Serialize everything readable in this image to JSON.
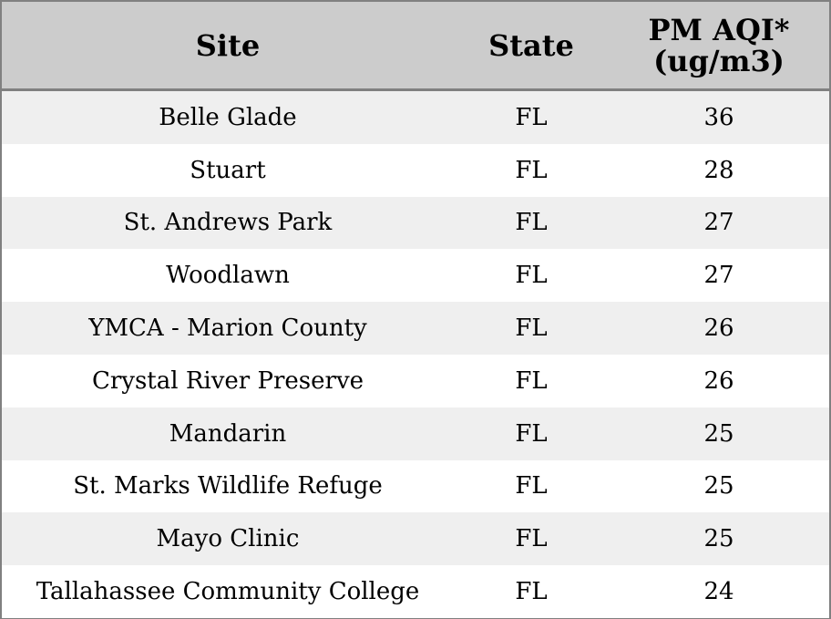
{
  "chart_data": {
    "type": "table",
    "columns": [
      "Site",
      "State",
      "PM AQI*\n(ug/m3)"
    ],
    "rows": [
      {
        "site": "Belle Glade",
        "state": "FL",
        "pm_aqi": "36"
      },
      {
        "site": "Stuart",
        "state": "FL",
        "pm_aqi": "28"
      },
      {
        "site": "St. Andrews Park",
        "state": "FL",
        "pm_aqi": "27"
      },
      {
        "site": "Woodlawn",
        "state": "FL",
        "pm_aqi": "27"
      },
      {
        "site": "YMCA - Marion County",
        "state": "FL",
        "pm_aqi": "26"
      },
      {
        "site": "Crystal River Preserve",
        "state": "FL",
        "pm_aqi": "26"
      },
      {
        "site": "Mandarin",
        "state": "FL",
        "pm_aqi": "25"
      },
      {
        "site": "St. Marks Wildlife Refuge",
        "state": "FL",
        "pm_aqi": "25"
      },
      {
        "site": "Mayo Clinic",
        "state": "FL",
        "pm_aqi": "25"
      },
      {
        "site": "Tallahassee Community College",
        "state": "FL",
        "pm_aqi": "24"
      }
    ]
  },
  "colors": {
    "header_bg": "#cccccc",
    "row_odd_bg": "#efefef",
    "row_even_bg": "#ffffff",
    "border": "#808080"
  }
}
